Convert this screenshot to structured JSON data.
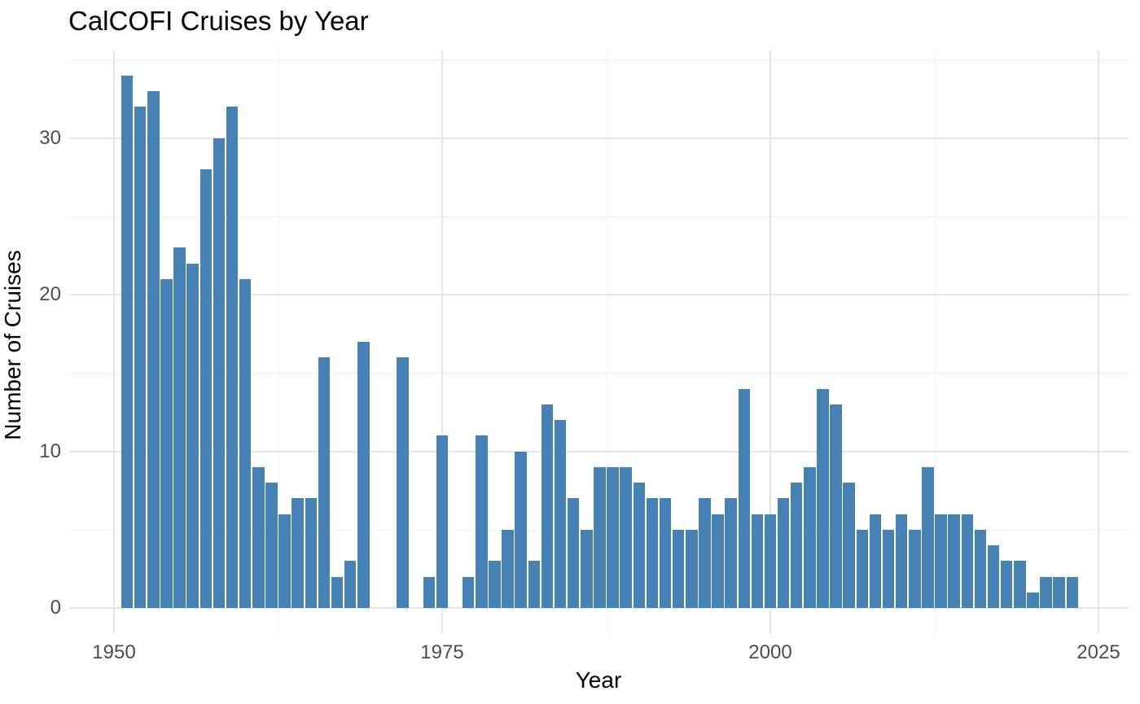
{
  "chart_data": {
    "type": "bar",
    "title": "CalCOFI Cruises by Year",
    "xlabel": "Year",
    "ylabel": "Number of Cruises",
    "x": [
      1951,
      1952,
      1953,
      1954,
      1955,
      1956,
      1957,
      1958,
      1959,
      1960,
      1961,
      1962,
      1963,
      1964,
      1965,
      1966,
      1967,
      1968,
      1969,
      1972,
      1974,
      1975,
      1977,
      1978,
      1979,
      1980,
      1981,
      1982,
      1983,
      1984,
      1985,
      1986,
      1987,
      1988,
      1989,
      1990,
      1991,
      1992,
      1993,
      1994,
      1995,
      1996,
      1997,
      1998,
      1999,
      2000,
      2001,
      2002,
      2003,
      2004,
      2005,
      2006,
      2007,
      2008,
      2009,
      2010,
      2011,
      2012,
      2013,
      2014,
      2015,
      2016,
      2017,
      2018,
      2019,
      2020,
      2021,
      2022,
      2023
    ],
    "values": [
      34,
      32,
      33,
      21,
      23,
      22,
      28,
      30,
      32,
      21,
      9,
      8,
      6,
      7,
      7,
      16,
      2,
      3,
      17,
      16,
      2,
      11,
      2,
      11,
      3,
      5,
      10,
      3,
      13,
      12,
      7,
      5,
      9,
      9,
      9,
      8,
      7,
      7,
      5,
      5,
      7,
      6,
      7,
      14,
      6,
      6,
      7,
      8,
      9,
      14,
      13,
      8,
      5,
      6,
      5,
      6,
      5,
      9,
      6,
      6,
      6,
      5,
      4,
      3,
      3,
      1,
      2,
      2,
      2
    ],
    "x_ticks": [
      1950,
      1975,
      2000,
      2025
    ],
    "y_ticks": [
      0,
      10,
      20,
      30
    ],
    "x_minor_gridlines": [
      1962.5,
      1987.5,
      2012.5
    ],
    "y_minor_gridlines": [
      5,
      15,
      25,
      35
    ],
    "xlim": [
      1946.6,
      2027.2
    ],
    "ylim": [
      0,
      35.6
    ],
    "grid": "major and minor gridlines, no axis lines, no tick marks",
    "legend": "none",
    "colors": {
      "bar": "#4682B4",
      "grid_major": "#e5e5e5",
      "grid_minor": "#f0f0f0",
      "tick_label": "#4d4d4d",
      "text": "#000000",
      "background": "#ffffff"
    }
  }
}
